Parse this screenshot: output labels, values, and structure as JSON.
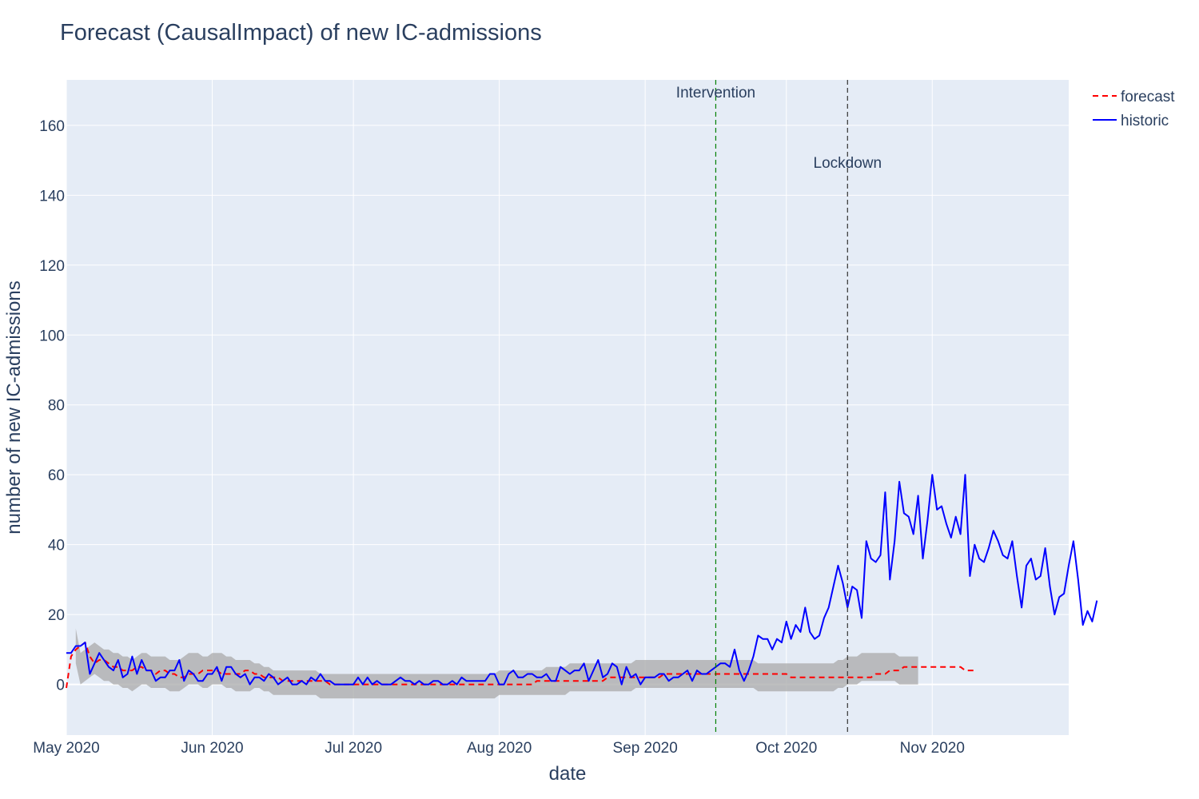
{
  "chart_data": {
    "type": "line",
    "title": "Forecast (CausalImpact) of new IC-admissions",
    "xlabel": "date",
    "ylabel": "number of new IC-admissions",
    "x_range": [
      "2020-05-01",
      "2020-11-30"
    ],
    "ylim": [
      -14.5,
      173
    ],
    "x_ticks": [
      {
        "date": "2020-05-01",
        "label": "May 2020"
      },
      {
        "date": "2020-06-01",
        "label": "Jun 2020"
      },
      {
        "date": "2020-07-01",
        "label": "Jul 2020"
      },
      {
        "date": "2020-08-01",
        "label": "Aug 2020"
      },
      {
        "date": "2020-09-01",
        "label": "Sep 2020"
      },
      {
        "date": "2020-10-01",
        "label": "Oct 2020"
      },
      {
        "date": "2020-11-01",
        "label": "Nov 2020"
      }
    ],
    "y_ticks": [
      0,
      20,
      40,
      60,
      80,
      100,
      120,
      140,
      160
    ],
    "grid": true,
    "legend_position": "top-right",
    "series": [
      {
        "name": "forecast",
        "color": "#ff0000",
        "dash": "dash",
        "start_date": "2020-05-01",
        "values": [
          -1,
          8,
          10,
          11,
          12,
          8,
          6,
          7,
          7,
          6,
          5,
          5,
          4,
          4,
          4,
          5,
          5,
          4,
          4,
          3,
          4,
          4,
          3,
          3,
          2,
          2,
          3,
          3,
          3,
          4,
          4,
          4,
          4,
          3,
          3,
          3,
          3,
          3,
          4,
          4,
          3,
          3,
          2,
          2,
          2,
          2,
          1,
          1,
          1,
          1,
          1,
          1,
          1,
          1,
          1,
          1,
          0,
          0,
          0,
          0,
          0,
          0,
          0,
          0,
          0,
          0,
          0,
          0,
          0,
          0,
          0,
          0,
          0,
          0,
          0,
          0,
          0,
          0,
          0,
          0,
          0,
          0,
          0,
          0,
          0,
          0,
          0,
          0,
          0,
          0,
          0,
          0,
          0,
          0,
          0,
          0,
          0,
          0,
          0,
          0,
          1,
          1,
          1,
          1,
          1,
          1,
          1,
          1,
          1,
          1,
          1,
          1,
          1,
          1,
          1,
          2,
          2,
          2,
          2,
          2,
          2,
          2,
          2,
          2,
          2,
          2,
          2,
          3,
          3,
          3,
          3,
          3,
          3,
          3,
          3,
          3,
          3,
          3,
          3,
          3,
          3,
          3,
          3,
          3,
          3,
          3,
          3,
          3,
          3,
          3,
          3,
          3,
          3,
          3,
          2,
          2,
          2,
          2,
          2,
          2,
          2,
          2,
          2,
          2,
          2,
          2,
          2,
          2,
          2,
          2,
          2,
          2,
          3,
          3,
          3,
          4,
          4,
          4,
          5,
          5,
          5,
          5,
          5,
          5,
          5,
          5,
          5,
          5,
          5,
          5,
          5,
          4,
          4,
          4
        ]
      },
      {
        "name": "historic",
        "color": "#0000ff",
        "dash": "solid",
        "start_date": "2020-05-01",
        "values": [
          9,
          9,
          11,
          11,
          12,
          3,
          6,
          9,
          7,
          5,
          4,
          7,
          2,
          3,
          8,
          3,
          7,
          4,
          4,
          1,
          2,
          2,
          4,
          4,
          7,
          1,
          4,
          3,
          1,
          1,
          3,
          3,
          5,
          1,
          5,
          5,
          3,
          2,
          3,
          0,
          2,
          2,
          1,
          3,
          2,
          0,
          1,
          2,
          0,
          0,
          1,
          0,
          2,
          1,
          3,
          1,
          1,
          0,
          0,
          0,
          0,
          0,
          2,
          0,
          2,
          0,
          1,
          0,
          0,
          0,
          1,
          2,
          1,
          1,
          0,
          1,
          0,
          0,
          1,
          1,
          0,
          0,
          1,
          0,
          2,
          1,
          1,
          1,
          1,
          1,
          3,
          3,
          0,
          0,
          3,
          4,
          2,
          2,
          3,
          3,
          2,
          2,
          3,
          1,
          1,
          5,
          4,
          3,
          4,
          4,
          6,
          1,
          4,
          7,
          2,
          3,
          6,
          5,
          0,
          5,
          2,
          3,
          0,
          2,
          2,
          2,
          3,
          3,
          1,
          2,
          2,
          3,
          4,
          1,
          4,
          3,
          3,
          4,
          5,
          6,
          6,
          5,
          10,
          4,
          1,
          4,
          8,
          14,
          13,
          13,
          10,
          13,
          12,
          18,
          13,
          17,
          15,
          22,
          15,
          13,
          14,
          19,
          22,
          28,
          34,
          29,
          22,
          28,
          27,
          19,
          41,
          36,
          35,
          37,
          55,
          30,
          41,
          58,
          49,
          48,
          43,
          54,
          36,
          47,
          60,
          50,
          51,
          46,
          42,
          48,
          43,
          60,
          31,
          40,
          36,
          35,
          39,
          44,
          41,
          37,
          36,
          41,
          31,
          22,
          34,
          36,
          30,
          31,
          39,
          28,
          20,
          25,
          26,
          34,
          41,
          30,
          17,
          21,
          18,
          24
        ]
      }
    ],
    "confidence_band": {
      "color": "#a9a9a9",
      "start_date": "2020-05-03",
      "lower": [
        6,
        0,
        1,
        2,
        3,
        2,
        1,
        1,
        0,
        0,
        -1,
        -1,
        -2,
        -1,
        0,
        0,
        -1,
        -1,
        -1,
        -1,
        -2,
        -2,
        -2,
        -1,
        0,
        0,
        0,
        -1,
        -1,
        0,
        0,
        0,
        -1,
        -1,
        -2,
        -2,
        -2,
        -2,
        -1,
        -1,
        -2,
        -2,
        -3,
        -3,
        -3,
        -3,
        -3,
        -3,
        -3,
        -3,
        -3,
        -3,
        -4,
        -4,
        -4,
        -4,
        -4,
        -4,
        -4,
        -4,
        -4,
        -4,
        -4,
        -4,
        -4,
        -4,
        -4,
        -4,
        -4,
        -4,
        -4,
        -4,
        -4,
        -4,
        -4,
        -4,
        -4,
        -4,
        -4,
        -4,
        -4,
        -4,
        -4,
        -4,
        -4,
        -4,
        -4,
        -4,
        -4,
        -4,
        -3,
        -3,
        -3,
        -3,
        -3,
        -3,
        -3,
        -3,
        -3,
        -3,
        -3,
        -3,
        -3,
        -3,
        -3,
        -2,
        -2,
        -2,
        -2,
        -2,
        -2,
        -2,
        -2,
        -2,
        -2,
        -2,
        -2,
        -2,
        -2,
        -1,
        -1,
        -1,
        -1,
        -1,
        -1,
        -1,
        -1,
        -1,
        -1,
        -1,
        -1,
        -1,
        -1,
        -1,
        -1,
        -1,
        -1,
        -1,
        -1,
        -1,
        -1,
        -1,
        -1,
        -1,
        -1,
        -2,
        -2,
        -2,
        -2,
        -2,
        -2,
        -2,
        -2,
        -2,
        -2,
        -2,
        -2,
        -2,
        -2,
        -2,
        -2,
        -2,
        -1,
        -1,
        0,
        0,
        0,
        1,
        1,
        1,
        1,
        1,
        1,
        1,
        1,
        0,
        0,
        0,
        0,
        0
      ],
      "upper": [
        16,
        9,
        10,
        11,
        12,
        11,
        10,
        10,
        9,
        9,
        8,
        8,
        7,
        8,
        9,
        9,
        8,
        8,
        8,
        8,
        7,
        7,
        7,
        8,
        9,
        9,
        9,
        8,
        8,
        9,
        9,
        9,
        8,
        8,
        7,
        7,
        7,
        7,
        6,
        6,
        5,
        5,
        4,
        4,
        4,
        4,
        4,
        4,
        4,
        4,
        4,
        4,
        3,
        3,
        3,
        3,
        3,
        3,
        3,
        3,
        3,
        3,
        3,
        3,
        3,
        3,
        3,
        3,
        3,
        3,
        3,
        3,
        3,
        3,
        3,
        3,
        3,
        3,
        3,
        3,
        3,
        3,
        3,
        3,
        3,
        3,
        3,
        3,
        3,
        3,
        4,
        4,
        4,
        4,
        4,
        4,
        4,
        4,
        4,
        4,
        5,
        5,
        5,
        5,
        5,
        6,
        6,
        6,
        6,
        6,
        6,
        6,
        6,
        6,
        6,
        6,
        6,
        6,
        6,
        7,
        7,
        7,
        7,
        7,
        7,
        7,
        7,
        7,
        7,
        7,
        7,
        7,
        7,
        7,
        7,
        7,
        7,
        7,
        7,
        7,
        7,
        7,
        7,
        7,
        7,
        6,
        6,
        6,
        6,
        6,
        6,
        6,
        6,
        6,
        6,
        6,
        6,
        6,
        6,
        6,
        6,
        6,
        7,
        7,
        8,
        8,
        8,
        9,
        9,
        9,
        9,
        9,
        9,
        9,
        9,
        8,
        8,
        8,
        8,
        8
      ]
    },
    "vlines": [
      {
        "date": "2020-09-16",
        "label": "Intervention",
        "color": "#008000"
      },
      {
        "date": "2020-10-14",
        "label": "Lockdown",
        "color": "#333333"
      }
    ]
  }
}
